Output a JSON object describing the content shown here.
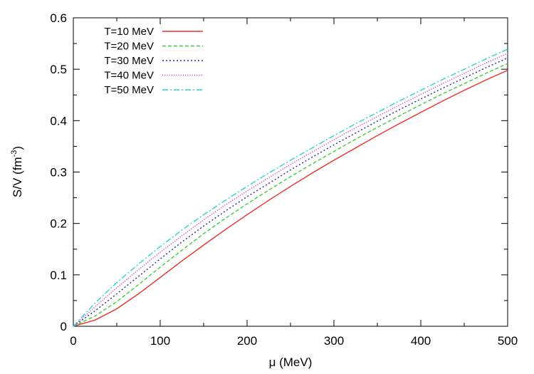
{
  "chart_data": {
    "type": "line",
    "xlabel": "μ (MeV)",
    "ylabel": "S/V (fm",
    "ylabel_sup": "-3",
    "ylabel_close": ")",
    "xlim": [
      0,
      500
    ],
    "ylim": [
      0,
      0.6
    ],
    "xticks": [
      0,
      100,
      200,
      300,
      400,
      500
    ],
    "yticks": [
      0,
      0.1,
      0.2,
      0.3,
      0.4,
      0.5,
      0.6
    ],
    "grid": false,
    "legend_position": "top-left",
    "series": [
      {
        "name": "T=10 MeV",
        "color": "#e8312a",
        "dash": "solid",
        "x": [
          0,
          25,
          50,
          75,
          100,
          125,
          150,
          175,
          200,
          225,
          250,
          275,
          300,
          325,
          350,
          375,
          400,
          425,
          450,
          475,
          500
        ],
        "y": [
          0,
          0.012,
          0.034,
          0.063,
          0.095,
          0.127,
          0.158,
          0.188,
          0.217,
          0.245,
          0.272,
          0.298,
          0.323,
          0.347,
          0.371,
          0.394,
          0.416,
          0.438,
          0.459,
          0.479,
          0.498
        ]
      },
      {
        "name": "T=20 MeV",
        "color": "#3ccf3c",
        "dash": "dashed",
        "x": [
          0,
          25,
          50,
          75,
          100,
          125,
          150,
          175,
          200,
          225,
          250,
          275,
          300,
          325,
          350,
          375,
          400,
          425,
          450,
          475,
          500
        ],
        "y": [
          0,
          0.02,
          0.048,
          0.081,
          0.115,
          0.148,
          0.18,
          0.21,
          0.238,
          0.265,
          0.291,
          0.316,
          0.34,
          0.364,
          0.387,
          0.409,
          0.431,
          0.452,
          0.472,
          0.492,
          0.511
        ]
      },
      {
        "name": "T=30 MeV",
        "color": "#2a2a9a",
        "dash": "dotted",
        "x": [
          0,
          25,
          50,
          75,
          100,
          125,
          150,
          175,
          200,
          225,
          250,
          275,
          300,
          325,
          350,
          375,
          400,
          425,
          450,
          475,
          500
        ],
        "y": [
          0,
          0.03,
          0.063,
          0.097,
          0.131,
          0.164,
          0.195,
          0.224,
          0.252,
          0.278,
          0.304,
          0.329,
          0.353,
          0.376,
          0.399,
          0.421,
          0.442,
          0.463,
          0.483,
          0.503,
          0.522
        ]
      },
      {
        "name": "T=40 MeV",
        "color": "#d23fd2",
        "dash": "dotted-fine",
        "x": [
          0,
          25,
          50,
          75,
          100,
          125,
          150,
          175,
          200,
          225,
          250,
          275,
          300,
          325,
          350,
          375,
          400,
          425,
          450,
          475,
          500
        ],
        "y": [
          0,
          0.038,
          0.075,
          0.11,
          0.144,
          0.176,
          0.207,
          0.236,
          0.263,
          0.289,
          0.315,
          0.339,
          0.363,
          0.386,
          0.408,
          0.43,
          0.451,
          0.472,
          0.492,
          0.512,
          0.531
        ]
      },
      {
        "name": "T=50 MeV",
        "color": "#2ad4d4",
        "dash": "dash-dot",
        "x": [
          0,
          25,
          50,
          75,
          100,
          125,
          150,
          175,
          200,
          225,
          250,
          275,
          300,
          325,
          350,
          375,
          400,
          425,
          450,
          475,
          500
        ],
        "y": [
          0,
          0.045,
          0.085,
          0.121,
          0.155,
          0.187,
          0.217,
          0.245,
          0.272,
          0.298,
          0.323,
          0.347,
          0.371,
          0.394,
          0.416,
          0.438,
          0.459,
          0.48,
          0.5,
          0.52,
          0.539
        ]
      }
    ]
  }
}
